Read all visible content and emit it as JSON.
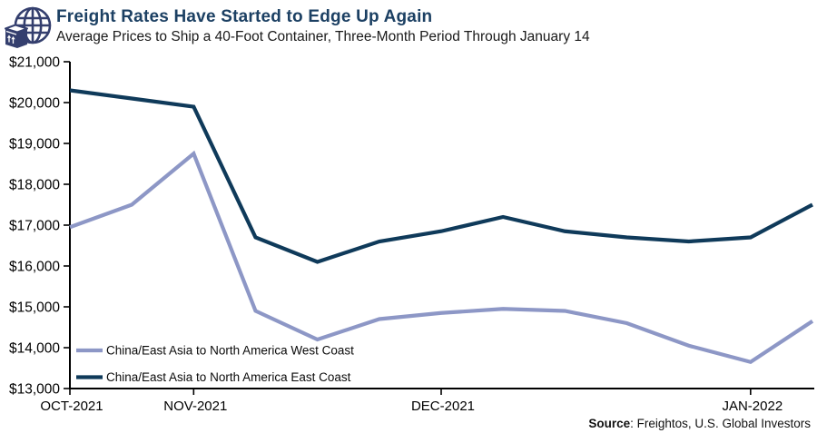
{
  "header": {
    "title": "Freight Rates Have Started to Edge Up Again",
    "subtitle": "Average Prices to Ship a 40-Foot Container, Three-Month Period Through January 14",
    "icon": "globe-package-icon"
  },
  "source": {
    "label": "Source",
    "text": ": Freightos, U.S. Global Investors"
  },
  "colors": {
    "title": "#1c4063",
    "icon": "#343f6e",
    "axis": "#000000",
    "west_coast": "#8d97c6",
    "east_coast": "#0f3a5a"
  },
  "chart_data": {
    "type": "line",
    "title": "Freight Rates Have Started to Edge Up Again",
    "subtitle": "Average Prices to Ship a 40-Foot Container, Three-Month Period Through January 14",
    "ylim": [
      13000,
      21000
    ],
    "y_ticks": [
      13000,
      14000,
      15000,
      16000,
      17000,
      18000,
      19000,
      20000,
      21000
    ],
    "y_tick_prefix": "$",
    "grid": false,
    "legend_position": "inside-bottom-left",
    "x_point_count": 13,
    "x_ticks": [
      {
        "label": "OCT-2021",
        "index": 0
      },
      {
        "label": "NOV-2021",
        "index": 2
      },
      {
        "label": "DEC-2021",
        "index": 6
      },
      {
        "label": "JAN-2022",
        "index": 11
      }
    ],
    "series": [
      {
        "id": "west-coast",
        "name": "China/East Asia to North America West Coast",
        "color": "#8d97c6",
        "values": [
          16950,
          17500,
          18750,
          14900,
          14200,
          14700,
          14850,
          14950,
          14900,
          14600,
          14050,
          13650,
          14650
        ]
      },
      {
        "id": "east-coast",
        "name": "China/East Asia to North America East Coast",
        "color": "#0f3a5a",
        "values": [
          20300,
          20100,
          19900,
          16700,
          16100,
          16600,
          16850,
          17200,
          16850,
          16700,
          16600,
          16700,
          17500
        ]
      }
    ]
  }
}
